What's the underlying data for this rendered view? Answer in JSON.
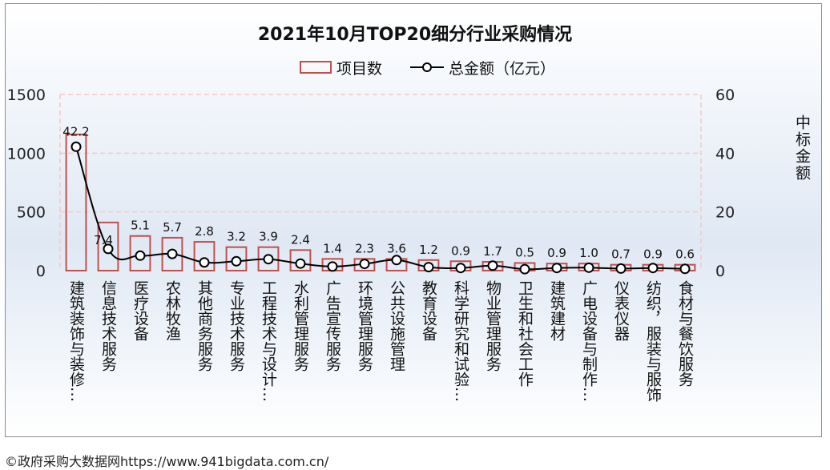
{
  "chart_data": {
    "type": "bar+line",
    "title": "2021年10月TOP20细分行业采购情况",
    "categories": [
      "建筑装饰与装修…",
      "信息技术服务",
      "医疗设备",
      "农林牧渔",
      "其他商务服务",
      "专业技术服务",
      "工程技术与设计…",
      "水利管理服务",
      "广告宣传服务",
      "环境管理服务",
      "公共设施管理",
      "教育设备",
      "科学研究和试验…",
      "物业管理服务",
      "卫生和社会工作",
      "建筑建材",
      "广电设备与制作…",
      "仪表仪器",
      "纺织，服装与服饰",
      "食材与餐饮服务"
    ],
    "series": [
      {
        "name": "项目数",
        "type": "bar",
        "axis": "left",
        "values": [
          1160,
          410,
          295,
          280,
          245,
          200,
          200,
          175,
          100,
          100,
          100,
          90,
          80,
          75,
          65,
          60,
          60,
          50,
          50,
          50
        ]
      },
      {
        "name": "总金额（亿元）",
        "type": "line",
        "axis": "right",
        "values": [
          42.2,
          7.4,
          5.1,
          5.7,
          2.8,
          3.2,
          3.9,
          2.4,
          1.4,
          2.3,
          3.6,
          1.2,
          0.9,
          1.7,
          0.5,
          0.9,
          1.0,
          0.7,
          0.9,
          0.6
        ],
        "labels": [
          "42.2",
          "7.4",
          "5.1",
          "5.7",
          "2.8",
          "3.2",
          "3.9",
          "2.4",
          "1.4",
          "2.3",
          "3.6",
          "1.2",
          "0.9",
          "1.7",
          "0.5",
          "0.9",
          "1.0",
          "0.7",
          "0.9",
          "0.6"
        ]
      }
    ],
    "y_left": {
      "ticks": [
        "0",
        "500",
        "1000",
        "1500"
      ],
      "tick_values": [
        0,
        500,
        1000,
        1500
      ],
      "range": [
        0,
        1500
      ]
    },
    "y_right": {
      "label": "中标金额",
      "ticks": [
        "0",
        "20",
        "40",
        "60"
      ],
      "tick_values": [
        0,
        20,
        40,
        60
      ],
      "range": [
        0,
        60
      ]
    },
    "legend_position": "top-center",
    "grid": "dashed-pink-horizontal"
  },
  "colors": {
    "bar_outline": "#c0504d",
    "line": "#000000",
    "grid": "#f4c7c3",
    "background_top": "#ffffff",
    "background_mid": "#dfe8f4",
    "text": "#111111"
  },
  "source": "©政府采购大数据网https://www.941bigdata.com.cn/"
}
